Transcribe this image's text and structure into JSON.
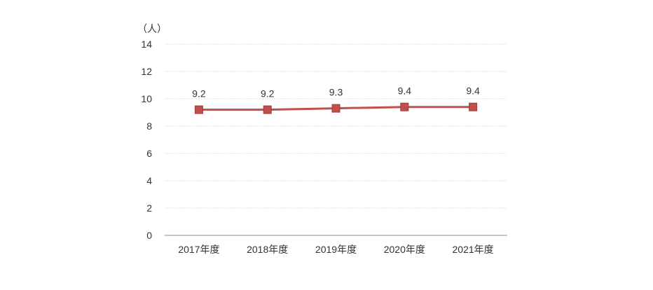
{
  "chart_data": {
    "type": "line",
    "title": "",
    "xlabel": "",
    "ylabel": "（人）",
    "categories": [
      "2017年度",
      "2018年度",
      "2019年度",
      "2020年度",
      "2021年度"
    ],
    "series": [
      {
        "values": [
          9.2,
          9.2,
          9.3,
          9.4,
          9.4
        ],
        "color": "#c0504d",
        "marker": "square"
      }
    ],
    "data_labels": [
      "9.2",
      "9.2",
      "9.3",
      "9.4",
      "9.4"
    ],
    "ylim": [
      0,
      14
    ],
    "yticks": [
      0,
      2,
      4,
      6,
      8,
      10,
      12,
      14
    ],
    "grid": true,
    "grid_color": "#d9d9d9",
    "axis_color": "#8c8c8c",
    "legend": "none"
  }
}
